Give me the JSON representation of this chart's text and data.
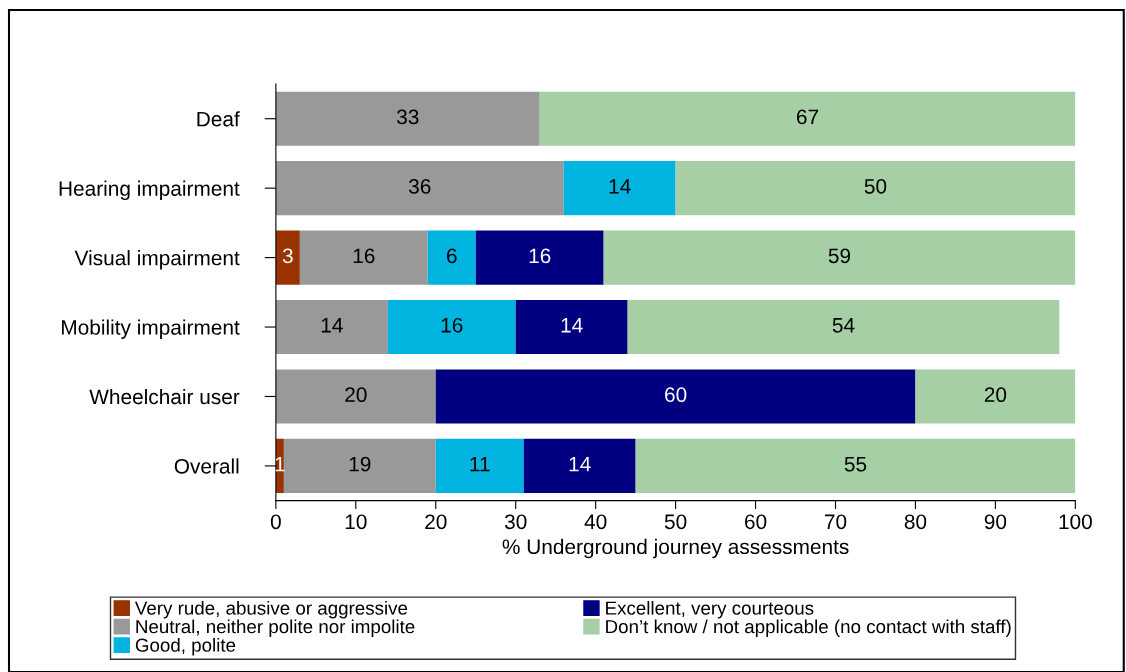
{
  "chart_data": {
    "type": "bar",
    "orientation": "horizontal",
    "stacked": true,
    "categories": [
      "Deaf",
      "Hearing impairment",
      "Visual impairment",
      "Mobility impairment",
      "Wheelchair user",
      "Overall"
    ],
    "series": [
      {
        "name": "Very rude, abusive or aggressive",
        "color": "#993300",
        "values": [
          null,
          null,
          3,
          null,
          null,
          1
        ]
      },
      {
        "name": "Neutral, neither polite nor impolite",
        "color": "#999999",
        "values": [
          33,
          36,
          16,
          14,
          20,
          19
        ]
      },
      {
        "name": "Good, polite",
        "color": "#00b4e0",
        "values": [
          null,
          14,
          6,
          16,
          null,
          11
        ]
      },
      {
        "name": "Excellent, very courteous",
        "color": "#000080",
        "values": [
          null,
          null,
          16,
          14,
          60,
          14
        ]
      },
      {
        "name": "Don’t know / not applicable (no contact with staff)",
        "color": "#a6cfa6",
        "values": [
          67,
          50,
          59,
          54,
          20,
          55
        ]
      }
    ],
    "xlabel": "% Underground journey assessments",
    "xlim": [
      0,
      100
    ],
    "xticks": [
      0,
      10,
      20,
      30,
      40,
      50,
      60,
      70,
      80,
      90,
      100
    ],
    "data_labels": true,
    "legend": "bottom",
    "grid": false
  }
}
